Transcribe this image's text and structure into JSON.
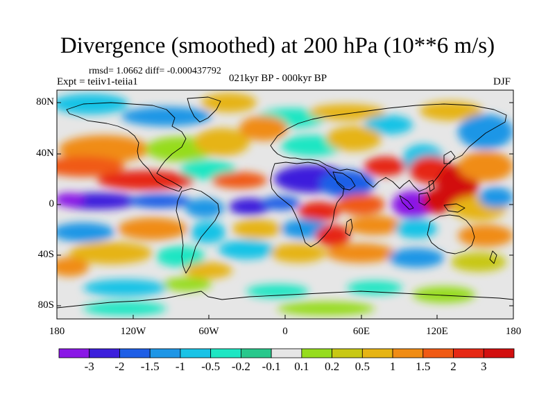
{
  "title": "Divergence (smoothed) at 200 hPa (10**6 m/s)",
  "stats_line": "rmsd= 1.0662 diff= -0.000437792",
  "experiment": "Expt = teiiv1-teiia1",
  "period": "021kyr BP - 000kyr BP",
  "season": "DJF",
  "lat_ticks": [
    "80N",
    "40N",
    "0",
    "40S",
    "80S"
  ],
  "lon_ticks": [
    "180",
    "120W",
    "60W",
    "0",
    "60E",
    "120E",
    "180"
  ],
  "colorbar": {
    "labels": [
      "-3",
      "-2",
      "-1.5",
      "-1",
      "-0.5",
      "-0.2",
      "-0.1",
      "0.1",
      "0.2",
      "0.5",
      "1",
      "1.5",
      "2",
      "3"
    ],
    "colors": [
      "#8a18e6",
      "#3c1fdc",
      "#1e5ee6",
      "#1e96e6",
      "#19c3e6",
      "#1ee6c3",
      "#28c88c",
      "#e6e6e6",
      "#96dc1e",
      "#c8c814",
      "#e6b414",
      "#f08c14",
      "#f05a14",
      "#e62814",
      "#d20f0f"
    ]
  },
  "map": {
    "lon_range": [
      -180,
      180
    ],
    "lat_range": [
      -90,
      90
    ],
    "background_color": "#e6e6e6"
  }
}
